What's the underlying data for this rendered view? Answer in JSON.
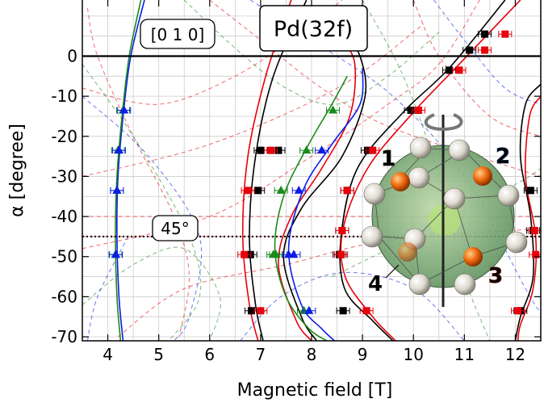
{
  "chart_data": {
    "type": "scatter",
    "xlabel": "Magnetic field [T]",
    "ylabel": "α [degree]",
    "xlim": [
      3.5,
      12.5
    ],
    "ylim": [
      -71,
      14
    ],
    "xticks": [
      "4",
      "5",
      "6",
      "7",
      "8",
      "9",
      "10",
      "11",
      "12"
    ],
    "yticks": [
      "0",
      "-10",
      "-20",
      "-30",
      "-40",
      "-50",
      "-60",
      "-70"
    ],
    "grid": true,
    "annotations": {
      "title_box": "Pd(32f)",
      "direction_label": "[0 1 0]",
      "angle_label": "45°",
      "site_labels": [
        "1",
        "2",
        "3",
        "4"
      ]
    },
    "colors": {
      "black": "#000000",
      "red": "#e8000b",
      "green": "#1a8a1a",
      "blue": "#0a1ee8",
      "accent_blue": "#1f6fb4"
    },
    "series": [
      {
        "color": "black",
        "x": [
          7.35,
          6.95,
          6.8,
          6.82,
          7.0,
          8.7,
          8.6,
          8.55,
          8.62,
          9.1,
          9.95,
          10.7,
          11.1,
          11.4,
          12.3,
          12.35,
          12.1
        ],
        "y": [
          -23.5,
          -33.5,
          -49.5,
          -63.5,
          -23.5,
          -33.5,
          -43.5,
          -49.5,
          -63.5,
          -23.5,
          -13.5,
          -3.5,
          1.5,
          5.5,
          -33.5,
          -43.5,
          -63.5
        ]
      },
      {
        "color": "red",
        "x": [
          7.2,
          6.75,
          6.68,
          7.0,
          9.2,
          8.7,
          8.6,
          8.58,
          9.08,
          10.1,
          10.9,
          11.4,
          11.8,
          12.38,
          12.4,
          12.05
        ],
        "y": [
          -23.5,
          -33.5,
          -49.5,
          -63.5,
          -23.5,
          -33.5,
          -43.5,
          -49.5,
          -63.5,
          -13.5,
          -3.5,
          1.5,
          5.5,
          -43.5,
          -49.5,
          -63.5
        ]
      },
      {
        "color": "green",
        "x": [
          4.3,
          4.2,
          4.18,
          4.15,
          7.9,
          7.4,
          7.25,
          7.3,
          7.85,
          8.42
        ],
        "y": [
          -13.5,
          -23.5,
          -33.5,
          -49.5,
          -23.5,
          -33.5,
          -49.5,
          -49.5,
          -63.5,
          -13.5
        ]
      },
      {
        "color": "blue",
        "x": [
          4.32,
          4.22,
          4.18,
          4.16,
          8.2,
          7.75,
          7.55,
          7.65,
          7.95
        ],
        "y": [
          -13.5,
          -23.5,
          -33.5,
          -49.5,
          -23.5,
          -33.5,
          -49.5,
          -49.5,
          -63.5
        ]
      }
    ]
  }
}
